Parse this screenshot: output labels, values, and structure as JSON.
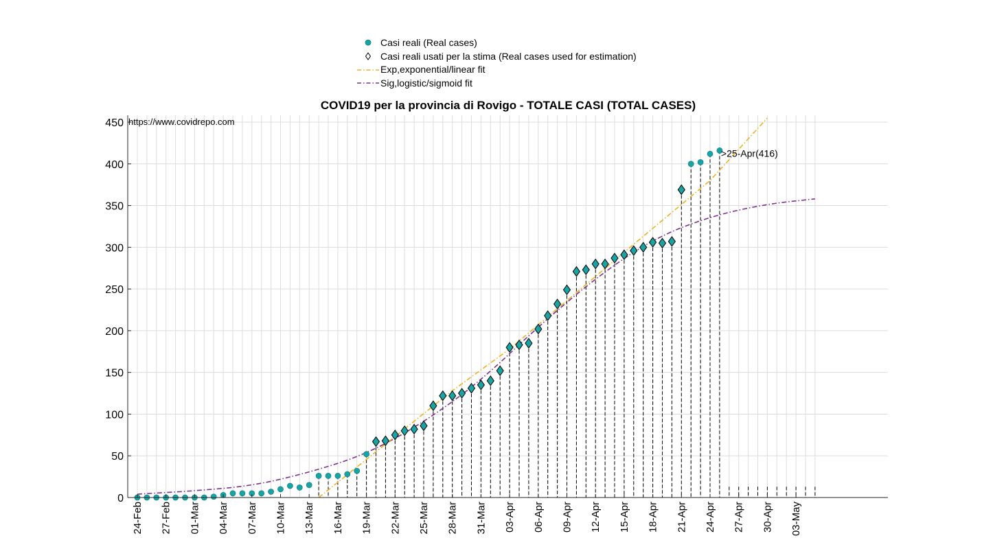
{
  "chart_data": {
    "type": "scatter",
    "title": "COVID19 per la provincia di Rovigo - TOTALE CASI (TOTAL CASES)",
    "source_note": "https://www.covidrepo.com",
    "last_point_label": ">25-Apr(416)",
    "xlabel": "",
    "ylabel": "",
    "x_range": [
      "2020-02-24",
      "2020-05-05"
    ],
    "ylim": [
      0,
      455
    ],
    "y_ticks": [
      0,
      50,
      100,
      150,
      200,
      250,
      300,
      350,
      400,
      450
    ],
    "x_tick_labels": [
      "24-Feb",
      "27-Feb",
      "01-Mar",
      "04-Mar",
      "07-Mar",
      "10-Mar",
      "13-Mar",
      "16-Mar",
      "19-Mar",
      "22-Mar",
      "25-Mar",
      "28-Mar",
      "31-Mar",
      "03-Apr",
      "06-Apr",
      "09-Apr",
      "12-Apr",
      "15-Apr",
      "18-Apr",
      "21-Apr",
      "24-Apr",
      "27-Apr",
      "30-Apr",
      "03-May"
    ],
    "grid": true,
    "legend_position": "top-center",
    "legend": [
      {
        "label": "Casi reali (Real cases)",
        "marker": "circle"
      },
      {
        "label": "Casi reali usati per la stima (Real cases used for estimation)",
        "marker": "diamond"
      },
      {
        "label": "Exp,exponential/linear fit",
        "line": "dash-dot"
      },
      {
        "label": "Sig,logistic/sigmoid fit",
        "line": "dash-dot"
      }
    ],
    "colors": {
      "real_cases": "#1aa3a3",
      "estimation_marker_edge": "#000000",
      "exp_fit": "#edb120",
      "sig_fit": "#7e2f8e",
      "grid": "#dcdcdc",
      "stems": "#000000"
    },
    "series": [
      {
        "name": "Casi reali (Real cases)",
        "x": [
          "2020-02-24",
          "2020-02-25",
          "2020-02-26",
          "2020-02-27",
          "2020-02-28",
          "2020-02-29",
          "2020-03-01",
          "2020-03-02",
          "2020-03-03",
          "2020-03-04",
          "2020-03-05",
          "2020-03-06",
          "2020-03-07",
          "2020-03-08",
          "2020-03-09",
          "2020-03-10",
          "2020-03-11",
          "2020-03-12",
          "2020-03-13",
          "2020-03-14",
          "2020-03-15",
          "2020-03-16",
          "2020-03-17",
          "2020-03-18",
          "2020-03-19",
          "2020-03-20",
          "2020-03-21",
          "2020-03-22",
          "2020-03-23",
          "2020-03-24",
          "2020-03-25",
          "2020-03-26",
          "2020-03-27",
          "2020-03-28",
          "2020-03-29",
          "2020-03-30",
          "2020-03-31",
          "2020-04-01",
          "2020-04-02",
          "2020-04-03",
          "2020-04-04",
          "2020-04-05",
          "2020-04-06",
          "2020-04-07",
          "2020-04-08",
          "2020-04-09",
          "2020-04-10",
          "2020-04-11",
          "2020-04-12",
          "2020-04-13",
          "2020-04-14",
          "2020-04-15",
          "2020-04-16",
          "2020-04-17",
          "2020-04-18",
          "2020-04-19",
          "2020-04-20",
          "2020-04-21",
          "2020-04-22",
          "2020-04-23",
          "2020-04-24",
          "2020-04-25"
        ],
        "y": [
          0,
          0,
          0,
          0,
          0,
          0,
          0,
          0,
          1,
          3,
          5,
          5,
          5,
          5,
          7,
          10,
          14,
          12,
          15,
          26,
          26,
          26,
          28,
          32,
          52,
          67,
          68,
          75,
          80,
          82,
          86,
          110,
          122,
          122,
          125,
          131,
          135,
          140,
          152,
          180,
          183,
          185,
          202,
          218,
          232,
          249,
          271,
          273,
          280,
          280,
          287,
          291,
          296,
          300,
          306,
          305,
          307,
          369,
          400,
          402,
          412,
          416
        ]
      },
      {
        "name": "Casi reali usati per la stima (Real cases used for estimation)",
        "x": [
          "2020-03-20",
          "2020-03-21",
          "2020-03-22",
          "2020-03-23",
          "2020-03-24",
          "2020-03-25",
          "2020-03-26",
          "2020-03-27",
          "2020-03-28",
          "2020-03-29",
          "2020-03-30",
          "2020-03-31",
          "2020-04-01",
          "2020-04-02",
          "2020-04-03",
          "2020-04-04",
          "2020-04-05",
          "2020-04-06",
          "2020-04-07",
          "2020-04-08",
          "2020-04-09",
          "2020-04-10",
          "2020-04-11",
          "2020-04-12",
          "2020-04-13",
          "2020-04-14",
          "2020-04-15",
          "2020-04-16",
          "2020-04-17",
          "2020-04-18",
          "2020-04-19",
          "2020-04-20",
          "2020-04-21"
        ],
        "y": [
          67,
          68,
          75,
          80,
          82,
          86,
          110,
          122,
          122,
          125,
          131,
          135,
          140,
          152,
          180,
          183,
          185,
          202,
          218,
          232,
          249,
          271,
          273,
          280,
          280,
          287,
          291,
          296,
          300,
          306,
          305,
          307,
          369
        ]
      },
      {
        "name": "Exp,exponential/linear fit",
        "x": [
          "2020-03-14",
          "2020-03-28",
          "2020-04-03",
          "2020-04-15",
          "2020-04-24",
          "2020-04-30"
        ],
        "y": [
          0,
          128,
          178,
          294,
          380,
          455
        ]
      },
      {
        "name": "Sig,logistic/sigmoid fit",
        "x": [
          "2020-02-24",
          "2020-03-01",
          "2020-03-07",
          "2020-03-13",
          "2020-03-19",
          "2020-03-25",
          "2020-03-31",
          "2020-04-06",
          "2020-04-12",
          "2020-04-18",
          "2020-04-24",
          "2020-04-30",
          "2020-05-05"
        ],
        "y": [
          4,
          8,
          14,
          30,
          52,
          90,
          140,
          205,
          263,
          310,
          337,
          352,
          358
        ]
      }
    ],
    "stems_x_range": [
      "2020-03-14",
      "2020-05-05"
    ]
  }
}
